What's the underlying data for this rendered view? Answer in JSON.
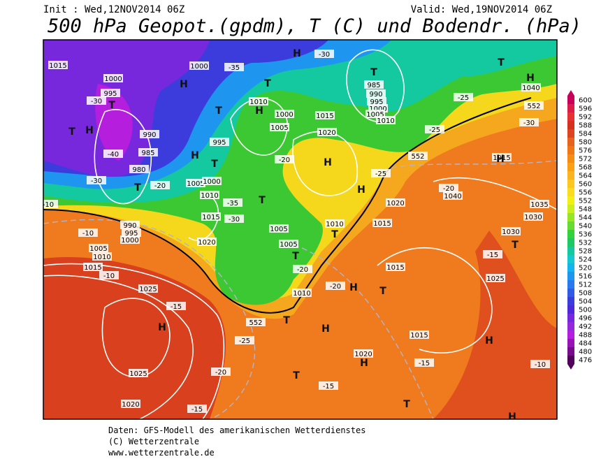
{
  "header": {
    "init": "Init : Wed,12NOV2014 06Z",
    "valid": "Valid: Wed,19NOV2014 06Z",
    "title": "500 hPa Geopot.(gpdm), T (C) und Bodendr. (hPa)"
  },
  "footer": {
    "lines": [
      "Daten: GFS-Modell des amerikanischen Wetterdienstes",
      "(C) Wetterzentrale",
      "www.wetterzentrale.de"
    ]
  },
  "colorbar": {
    "labels": [
      600,
      596,
      592,
      588,
      584,
      580,
      576,
      572,
      568,
      564,
      560,
      556,
      552,
      548,
      544,
      540,
      536,
      532,
      528,
      524,
      520,
      516,
      512,
      508,
      504,
      500,
      496,
      492,
      488,
      484,
      480,
      476
    ],
    "colors": [
      "#c8005a",
      "#dc1e46",
      "#e63232",
      "#d2321e",
      "#dc461e",
      "#e6641e",
      "#f07814",
      "#f58c14",
      "#faa014",
      "#fab41e",
      "#fac81e",
      "#fadc1e",
      "#f0f014",
      "#c8f01e",
      "#96e628",
      "#64dc32",
      "#32d23c",
      "#1ec864",
      "#14c8a0",
      "#14c8d2",
      "#14b4f0",
      "#1e96f0",
      "#2878f0",
      "#325ae6",
      "#3c3cdc",
      "#5028dc",
      "#7828dc",
      "#9628dc",
      "#b41edc",
      "#9614b4",
      "#780a8c",
      "#50005a"
    ]
  },
  "map": {
    "labels": [
      "1015",
      "1000",
      "995",
      "1000",
      "-35",
      "-30",
      "985",
      "990",
      "995",
      "1000",
      "1005",
      "1010",
      "1010",
      "1000",
      "1005",
      "1015",
      "1020",
      "990",
      "985",
      "980",
      "995",
      "1005",
      "1000",
      "1010",
      "1015",
      "1020",
      "1005",
      "1005",
      "1010",
      "1020",
      "1015",
      "1015",
      "1010",
      "990",
      "995",
      "1000",
      "1005",
      "1010",
      "1015",
      "1025",
      "1025",
      "1020",
      "1020",
      "1015",
      "1025",
      "1030",
      "1035",
      "1030",
      "1040",
      "1040",
      "1015",
      "-25",
      "-30",
      "-25",
      "-20",
      "-25",
      "-20",
      "-30",
      "-35",
      "-10",
      "-10",
      "-15",
      "-20",
      "-20",
      "-25",
      "-20",
      "-15",
      "-15",
      "-15",
      "-10",
      "-15",
      "-10",
      "-30",
      "-40",
      "-30",
      "-20",
      "552",
      "552",
      "552"
    ],
    "centers": [
      "H",
      "H",
      "T",
      "T",
      "H",
      "H",
      "T",
      "T",
      "T",
      "T",
      "H",
      "H",
      "T",
      "T",
      "H",
      "H",
      "T",
      "T",
      "T",
      "H",
      "T",
      "H",
      "T",
      "H",
      "H",
      "T",
      "T",
      "H",
      "H",
      "T",
      "H"
    ]
  }
}
